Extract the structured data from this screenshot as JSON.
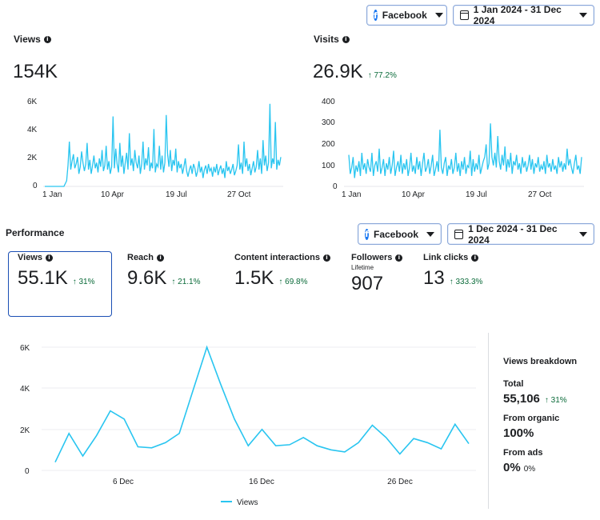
{
  "top_controls": {
    "platform": "Facebook",
    "date_range": "1 Jan 2024 - 31 Dec 2024"
  },
  "views_panel": {
    "title": "Views",
    "total": "154K",
    "y_ticks": [
      "6K",
      "4K",
      "2K",
      "0"
    ],
    "x_ticks": [
      "1 Jan",
      "10 Apr",
      "19 Jul",
      "27 Oct"
    ]
  },
  "visits_panel": {
    "title": "Visits",
    "total": "26.9K",
    "delta": "↑ 77.2%",
    "y_ticks": [
      "400",
      "300",
      "200",
      "100",
      "0"
    ],
    "x_ticks": [
      "1 Jan",
      "10 Apr",
      "19 Jul",
      "27 Oct"
    ]
  },
  "performance": {
    "title": "Performance",
    "platform": "Facebook",
    "date_range": "1 Dec 2024 - 31 Dec 2024",
    "metrics": [
      {
        "label": "Views",
        "value": "55.1K",
        "delta": "↑ 31%"
      },
      {
        "label": "Reach",
        "value": "9.6K",
        "delta": "↑ 21.1%"
      },
      {
        "label": "Content interactions",
        "value": "1.5K",
        "delta": "↑ 69.8%"
      },
      {
        "label": "Followers",
        "sublabel": "Lifetime",
        "value": "907"
      },
      {
        "label": "Link clicks",
        "value": "13",
        "delta": "↑ 333.3%"
      }
    ]
  },
  "breakdown": {
    "title": "Views breakdown",
    "total_label": "Total",
    "total_value": "55,106",
    "total_delta": "↑ 31%",
    "organic_label": "From organic",
    "organic_value": "100%",
    "ads_label": "From ads",
    "ads_value": "0%",
    "ads_small": "0%"
  },
  "chart_data": [
    {
      "type": "line",
      "name": "views-yearly",
      "ylim": [
        0,
        6000
      ],
      "x_tick_labels": [
        "1 Jan",
        "10 Apr",
        "19 Jul",
        "27 Oct"
      ],
      "color": "#29c5f0",
      "values": [
        0,
        0,
        0,
        0,
        0,
        0,
        0,
        0,
        0,
        0,
        0,
        0,
        0,
        0,
        0,
        200,
        400,
        1500,
        3200,
        1200,
        1800,
        2300,
        1300,
        1600,
        2100,
        900,
        1400,
        2500,
        1700,
        1100,
        1600,
        3100,
        1200,
        1900,
        900,
        1500,
        2200,
        1300,
        1700,
        1000,
        2000,
        1400,
        2600,
        1100,
        1500,
        2900,
        1200,
        1800,
        900,
        1400,
        5000,
        1300,
        2700,
        1600,
        1000,
        3100,
        1400,
        2200,
        900,
        1700,
        2400,
        1200,
        3800,
        1500,
        2000,
        1100,
        2600,
        1700,
        1300,
        2200,
        900,
        1600,
        3200,
        1200,
        2000,
        1500,
        2800,
        1100,
        1700,
        1300,
        4100,
        1000,
        1600,
        1400,
        2900,
        1200,
        2200,
        1000,
        1700,
        5100,
        2300,
        1400,
        2600,
        1100,
        1900,
        1500,
        2700,
        1000,
        1800,
        1300,
        1600,
        900,
        1400,
        2000,
        1100,
        700,
        1200,
        1500,
        900,
        1600,
        1300,
        700,
        1100,
        1800,
        1000,
        1400,
        600,
        1200,
        1500,
        900,
        1600,
        1100,
        1300,
        700,
        1400,
        1000,
        1600,
        800,
        1200,
        1500,
        900,
        1300,
        600,
        1800,
        1100,
        1400,
        900,
        1200,
        1600,
        800,
        1100,
        1500,
        3000,
        1200,
        1700,
        900,
        3200,
        1400,
        2000,
        1100,
        1600,
        800,
        1300,
        1800,
        1000,
        1400,
        2600,
        1200,
        2000,
        900,
        3300,
        1500,
        2200,
        1100,
        1700,
        5900,
        1300,
        2000,
        1600,
        4600,
        1200,
        1900,
        1500,
        2100
      ]
    },
    {
      "type": "line",
      "name": "visits-yearly",
      "ylim": [
        0,
        400
      ],
      "x_tick_labels": [
        "1 Jan",
        "10 Apr",
        "19 Jul",
        "27 Oct"
      ],
      "color": "#29c5f0",
      "values": [
        150,
        60,
        90,
        140,
        40,
        100,
        70,
        120,
        50,
        160,
        80,
        110,
        60,
        130,
        90,
        70,
        160,
        50,
        100,
        120,
        70,
        180,
        60,
        90,
        130,
        50,
        110,
        80,
        140,
        60,
        100,
        170,
        50,
        90,
        120,
        70,
        150,
        60,
        110,
        80,
        130,
        50,
        90,
        160,
        70,
        100,
        60,
        140,
        80,
        120,
        50,
        110,
        160,
        70,
        90,
        130,
        60,
        100,
        150,
        50,
        80,
        120,
        70,
        270,
        90,
        60,
        110,
        140,
        50,
        100,
        80,
        130,
        60,
        90,
        160,
        70,
        110,
        50,
        120,
        80,
        140,
        60,
        100,
        90,
        170,
        50,
        130,
        70,
        110,
        80,
        150,
        60,
        90,
        120,
        140,
        200,
        80,
        110,
        300,
        140,
        100,
        160,
        90,
        240,
        120,
        80,
        150,
        100,
        190,
        70,
        130,
        90,
        160,
        60,
        120,
        100,
        150,
        80,
        110,
        60,
        140,
        90,
        120,
        70,
        100,
        150,
        80,
        130,
        60,
        110,
        90,
        140,
        70,
        100,
        80,
        120,
        60,
        150,
        90,
        110,
        70,
        130,
        80,
        100,
        60,
        140,
        90,
        120,
        70,
        110,
        80,
        180,
        100,
        130,
        90,
        60,
        110,
        150,
        80,
        100,
        60,
        140
      ]
    },
    {
      "type": "line",
      "name": "views-december",
      "ylim": [
        0,
        6000
      ],
      "x": [
        1,
        2,
        3,
        4,
        5,
        6,
        7,
        8,
        9,
        10,
        11,
        12,
        13,
        14,
        15,
        16,
        17,
        18,
        19,
        20,
        21,
        22,
        23,
        24,
        25,
        26,
        27,
        28,
        29,
        30,
        31
      ],
      "x_tick_labels": [
        "6 Dec",
        "16 Dec",
        "26 Dec"
      ],
      "x_tick_values": [
        6,
        16,
        26
      ],
      "legend": "Views",
      "color": "#29c5f0",
      "values": [
        400,
        1800,
        700,
        1700,
        2900,
        2500,
        1150,
        1100,
        1350,
        1800,
        3900,
        6000,
        4200,
        2500,
        1200,
        2000,
        1200,
        1250,
        1600,
        1200,
        1000,
        900,
        1350,
        2200,
        1600,
        800,
        1550,
        1350,
        1050,
        2250,
        1300
      ]
    }
  ]
}
